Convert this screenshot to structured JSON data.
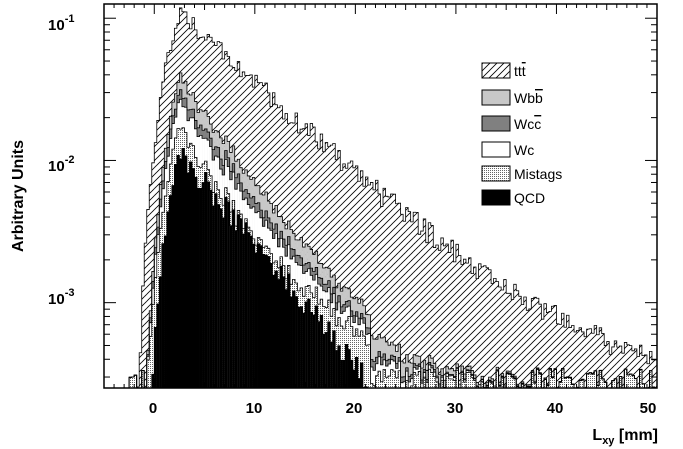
{
  "chart_data": {
    "type": "stacked-step-histogram",
    "ylabel": "Arbitrary Units",
    "xlabel_main": "L",
    "xlabel_sub": "xy",
    "xlabel_unit": " [mm]",
    "xlim": [
      -5,
      50
    ],
    "ylim_log10": [
      -3.6,
      -0.9
    ],
    "scale_y": "log",
    "x_ticks": [
      0,
      10,
      20,
      30,
      40,
      50
    ],
    "y_ticks": [
      {
        "base": "10",
        "exp": "-1",
        "value": 0.1
      },
      {
        "base": "10",
        "exp": "-2",
        "value": 0.01
      },
      {
        "base": "10",
        "exp": "-3",
        "value": 0.001
      }
    ],
    "bin_width_mm": 0.25,
    "grid": false,
    "legend_position": "upper-right",
    "series": [
      {
        "name": "QCD",
        "fill": "solid",
        "color": "#000000",
        "stack_order": 1
      },
      {
        "name": "Mistags",
        "fill": "dotted",
        "color": "#c8c8c8",
        "stack_order": 2
      },
      {
        "name": "Wc",
        "fill": "open",
        "color": "#ffffff",
        "stack_order": 3
      },
      {
        "name": "Wcc̄",
        "fill": "solid",
        "color": "#808080",
        "stack_order": 4
      },
      {
        "name": "Wbb̄",
        "fill": "solid",
        "color": "#c8c8c8",
        "stack_order": 5
      },
      {
        "name": "tt̄",
        "fill": "hatched",
        "color": "#ffffff",
        "stack_order": 6
      }
    ],
    "legend": [
      {
        "key": "ttbar",
        "label_main": "tt",
        "label_bar": "t",
        "fill": "hatch"
      },
      {
        "key": "wbb",
        "label_main": "Wb",
        "label_bar": "b",
        "fill": "#c8c8c8"
      },
      {
        "key": "wcc",
        "label_main": "Wc",
        "label_bar": "c",
        "fill": "#808080"
      },
      {
        "key": "wc",
        "label_main": "Wc",
        "label_bar": "",
        "fill": "#ffffff"
      },
      {
        "key": "mistags",
        "label_main": "Mistags",
        "label_bar": "",
        "fill": "dots"
      },
      {
        "key": "qcd",
        "label_main": "QCD",
        "label_bar": "",
        "fill": "#000000"
      }
    ]
  }
}
